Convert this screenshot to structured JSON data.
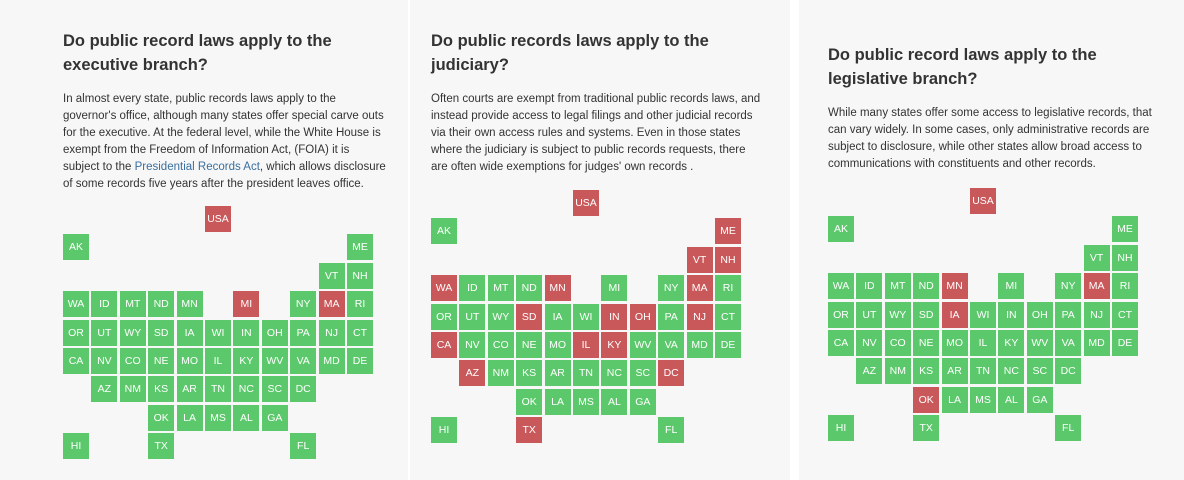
{
  "colors": {
    "yes": "#5bc96b",
    "no": "#c9585a",
    "link": "#3a6f9e"
  },
  "panels": [
    {
      "id": "executive",
      "title": "Do public record laws apply to the executive branch?",
      "description": {
        "before": "In almost every state, public records laws apply to the governor's office, although many states offer special carve outs for the executive. At the federal level, while the White House is exempt from the Freedom of Information Act, (FOIA) it is subject to the ",
        "link": "Presidential Records Act",
        "after": ", which allows disclosure of some records five years after the president leaves office."
      },
      "red": [
        "USA",
        "MI",
        "MA"
      ]
    },
    {
      "id": "judiciary",
      "title": "Do public records laws apply to the judiciary?",
      "description": {
        "before": "Often courts are exempt from traditional public records laws, and instead provide access to legal filings and other judicial records via their own access rules and systems. Even in those states where the judiciary is subject to public records requests, there are often wide exemptions for judges' own records .",
        "link": "",
        "after": ""
      },
      "red": [
        "USA",
        "ME",
        "VT",
        "NH",
        "WA",
        "MN",
        "MA",
        "SD",
        "IN",
        "OH",
        "NJ",
        "CA",
        "IL",
        "KY",
        "AZ",
        "DC",
        "TX"
      ]
    },
    {
      "id": "legislative",
      "title": "Do public record laws apply to the legislative branch?",
      "description": {
        "before": "While many states offer some access to legislative records, that can vary widely. In some cases, only administrative records are subject to disclosure, while other states allow broad access to communications with constituents and other records.",
        "link": "",
        "after": ""
      },
      "red": [
        "USA",
        "MN",
        "MA",
        "IA",
        "OK"
      ]
    }
  ]
}
